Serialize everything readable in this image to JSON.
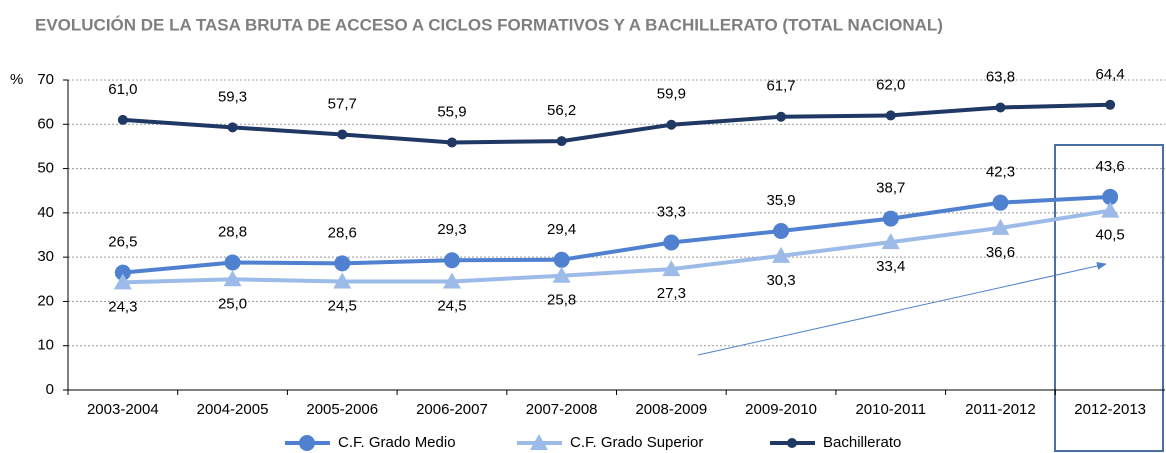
{
  "chart_data": {
    "type": "line",
    "title": "EVOLUCIÓN DE LA TASA BRUTA DE ACCESO A CICLOS FORMATIVOS Y A BACHILLERATO (TOTAL NACIONAL)",
    "ylabel": "%",
    "categories": [
      "2003-2004",
      "2004-2005",
      "2005-2006",
      "2006-2007",
      "2007-2008",
      "2008-2009",
      "2009-2010",
      "2010-2011",
      "2011-2012",
      "2012-2013"
    ],
    "series": [
      {
        "name": "C.F. Grado Medio",
        "color": "#4f81d0",
        "marker": "circle",
        "values": [
          26.5,
          28.8,
          28.6,
          29.3,
          29.4,
          33.3,
          35.9,
          38.7,
          42.3,
          43.6
        ],
        "value_labels": [
          "26,5",
          "28,8",
          "28,6",
          "29,3",
          "29,4",
          "33,3",
          "35,9",
          "38,7",
          "42,3",
          "43,6"
        ]
      },
      {
        "name": "C.F. Grado Superior",
        "color": "#9dbbe8",
        "marker": "triangle",
        "values": [
          24.3,
          25.0,
          24.5,
          24.5,
          25.8,
          27.3,
          30.3,
          33.4,
          36.6,
          40.5
        ],
        "value_labels": [
          "24,3",
          "25,0",
          "24,5",
          "24,5",
          "25,8",
          "27,3",
          "30,3",
          "33,4",
          "36,6",
          "40,5"
        ]
      },
      {
        "name": "Bachillerato",
        "color": "#1f3864",
        "marker": "dot",
        "values": [
          61.0,
          59.3,
          57.7,
          55.9,
          56.2,
          59.9,
          61.7,
          62.0,
          63.8,
          64.4
        ],
        "value_labels": [
          "61,0",
          "59,3",
          "57,7",
          "55,9",
          "56,2",
          "59,9",
          "61,7",
          "62,0",
          "63,8",
          "64,4"
        ]
      }
    ],
    "ylim": [
      0,
      70
    ],
    "yticks": [
      0,
      10,
      20,
      30,
      40,
      50,
      60,
      70
    ],
    "grid": true
  }
}
